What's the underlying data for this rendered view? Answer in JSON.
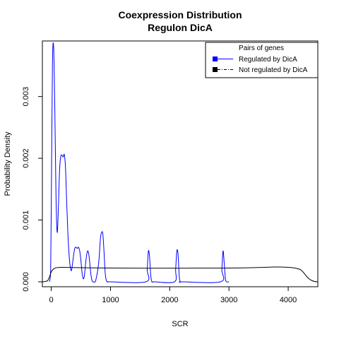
{
  "chart_data": {
    "type": "line",
    "title": "Coexpression Distribution",
    "subtitle": "Regulon DicA",
    "xlabel": "SCR",
    "ylabel": "Probability Density",
    "xlim": [
      -150,
      4500
    ],
    "ylim": [
      -8e-05,
      0.0039
    ],
    "x_ticks": [
      0,
      1000,
      2000,
      3000,
      4000
    ],
    "y_ticks": [
      0.0,
      0.001,
      0.002,
      0.003
    ],
    "y_tick_labels": [
      "0.000",
      "0.001",
      "0.002",
      "0.003"
    ],
    "legend": {
      "title": "Pairs of genes",
      "position": "top-right",
      "entries": [
        {
          "label": "Regulated by  DicA",
          "color": "#0000ff",
          "marker_color": "#0000ff"
        },
        {
          "label": "Not regulated by  DicA",
          "color": "#000000",
          "marker_color": "#000000"
        }
      ]
    },
    "series": [
      {
        "name": "Regulated by  DicA",
        "color": "#0000ff",
        "x": [
          -30,
          -10,
          0,
          20,
          40,
          60,
          80,
          100,
          120,
          140,
          160,
          180,
          200,
          220,
          240,
          260,
          280,
          300,
          320,
          340,
          360,
          380,
          400,
          420,
          440,
          460,
          480,
          500,
          520,
          540,
          560,
          580,
          600,
          620,
          640,
          660,
          680,
          700,
          720,
          750,
          800,
          830,
          850,
          870,
          890,
          910,
          930,
          960,
          1000,
          1600,
          1620,
          1640,
          1660,
          1680,
          1700,
          1740,
          2080,
          2100,
          2120,
          2140,
          2160,
          2180,
          2220,
          2860,
          2880,
          2900,
          2920,
          2940,
          2960,
          3000
        ],
        "y": [
          0,
          0.0002,
          0.0012,
          0.0035,
          0.0038,
          0.0028,
          0.0014,
          0.0008,
          0.0012,
          0.0018,
          0.00203,
          0.00205,
          0.00202,
          0.00206,
          0.00185,
          0.0013,
          0.0008,
          0.00045,
          0.00025,
          0.00018,
          0.0003,
          0.00045,
          0.00055,
          0.00056,
          0.00054,
          0.00056,
          0.0005,
          0.00035,
          0.00015,
          5e-05,
          0.0001,
          0.0003,
          0.00045,
          0.0005,
          0.0004,
          0.0002,
          5e-05,
          0,
          0,
          2e-05,
          0.0003,
          0.0007,
          0.0008,
          0.00078,
          0.0005,
          0.00015,
          2e-05,
          0,
          0,
          0,
          0.0002,
          0.0005,
          0.0004,
          0.0001,
          0,
          0,
          0,
          0.0002,
          0.0005,
          0.00045,
          0.0001,
          0,
          0,
          0,
          0.0002,
          0.0005,
          0.0003,
          5e-05,
          0,
          0
        ]
      },
      {
        "name": "Not regulated by  DicA",
        "color": "#000000",
        "x": [
          -150,
          -100,
          -60,
          -30,
          0,
          30,
          60,
          100,
          200,
          400,
          800,
          1200,
          1600,
          2000,
          2400,
          2800,
          3200,
          3600,
          3800,
          4000,
          4100,
          4200,
          4250,
          4300,
          4350,
          4400,
          4450,
          4500
        ],
        "y": [
          0,
          5e-06,
          2e-05,
          8e-05,
          0.00016,
          0.0002,
          0.00022,
          0.00023,
          0.000235,
          0.00023,
          0.000225,
          0.000222,
          0.00022,
          0.00022,
          0.000221,
          0.000222,
          0.000225,
          0.000235,
          0.00024,
          0.000235,
          0.000225,
          0.0002,
          0.00016,
          0.0001,
          5e-05,
          2e-05,
          4e-06,
          0
        ]
      }
    ]
  }
}
